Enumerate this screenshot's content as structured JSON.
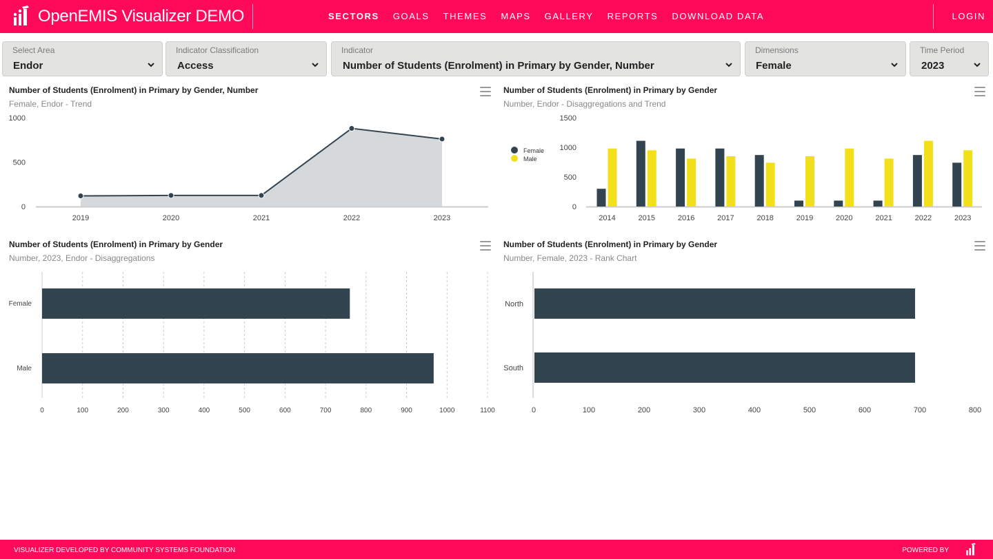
{
  "header": {
    "brand_main": "OpenEMIS Visualizer",
    "brand_demo": " DEMO",
    "nav": [
      {
        "label": "SECTORS"
      },
      {
        "label": "GOALS"
      },
      {
        "label": "THEMES"
      },
      {
        "label": "MAPS"
      },
      {
        "label": "GALLERY"
      },
      {
        "label": "REPORTS"
      },
      {
        "label": "DOWNLOAD DATA"
      }
    ],
    "login": "LOGIN",
    "colors": {
      "brand": "#ff0a5a"
    }
  },
  "filters": [
    {
      "label": "Select Area",
      "value": "Endor"
    },
    {
      "label": "Indicator Classification",
      "value": "Access"
    },
    {
      "label": "Indicator",
      "value": "Number of Students (Enrolment) in Primary by Gender, Number"
    },
    {
      "label": "Dimensions",
      "value": "Female"
    },
    {
      "label": "Time Period",
      "value": "2023"
    }
  ],
  "panels": {
    "trend": {
      "title": "Number of Students (Enrolment) in Primary by Gender, Number",
      "subtitle": "Female, Endor - Trend"
    },
    "disagg_trend": {
      "title": "Number of Students (Enrolment) in Primary by Gender",
      "subtitle": "Number, Endor - Disaggregations and Trend"
    },
    "disagg": {
      "title": "Number of Students (Enrolment) in Primary by Gender",
      "subtitle": "Number, 2023, Endor - Disaggregations"
    },
    "rank": {
      "title": "Number of Students (Enrolment) in Primary by Gender",
      "subtitle": "Number, Female, 2023 - Rank Chart"
    }
  },
  "chart_data": [
    {
      "type": "area",
      "x": [
        "2019",
        "2020",
        "2021",
        "2022",
        "2023"
      ],
      "series": [
        {
          "values": [
            120,
            125,
            125,
            880,
            760
          ]
        }
      ],
      "ylim": [
        0,
        1000
      ],
      "yticks": [
        "0",
        "500",
        "1000"
      ],
      "color": "#334451",
      "fill": "#d5d9dc",
      "grid": false
    },
    {
      "type": "bar",
      "categories": [
        "2014",
        "2015",
        "2016",
        "2017",
        "2018",
        "2019",
        "2020",
        "2021",
        "2022",
        "2023"
      ],
      "series": [
        {
          "name": "Female",
          "color": "#334451",
          "values": [
            300,
            1110,
            980,
            980,
            870,
            100,
            100,
            100,
            870,
            740
          ]
        },
        {
          "name": "Male",
          "color": "#f2e01a",
          "values": [
            980,
            950,
            810,
            850,
            740,
            850,
            980,
            810,
            1110,
            950
          ]
        }
      ],
      "ylim": [
        0,
        1500
      ],
      "yticks": [
        "0",
        "500",
        "1000",
        "1500"
      ],
      "legend": "left",
      "grid": false
    },
    {
      "type": "bar",
      "orientation": "horizontal",
      "categories": [
        "Female",
        "Male"
      ],
      "values": [
        760,
        967
      ],
      "xlim": [
        0,
        1100
      ],
      "xticks": [
        "0",
        "100",
        "200",
        "300",
        "400",
        "500",
        "600",
        "700",
        "800",
        "900",
        "1000",
        "1100"
      ],
      "color": "#334451",
      "grid": true
    },
    {
      "type": "bar",
      "orientation": "horizontal",
      "categories": [
        "North",
        "South"
      ],
      "values": [
        690,
        690
      ],
      "xlim": [
        0,
        800
      ],
      "xticks": [
        "0",
        "100",
        "200",
        "300",
        "400",
        "500",
        "600",
        "700",
        "800"
      ],
      "color": "#334451",
      "grid": false
    }
  ],
  "footer": {
    "left": "VISUALIZER DEVELOPED BY COMMUNITY SYSTEMS FOUNDATION",
    "right": "POWERED BY"
  }
}
